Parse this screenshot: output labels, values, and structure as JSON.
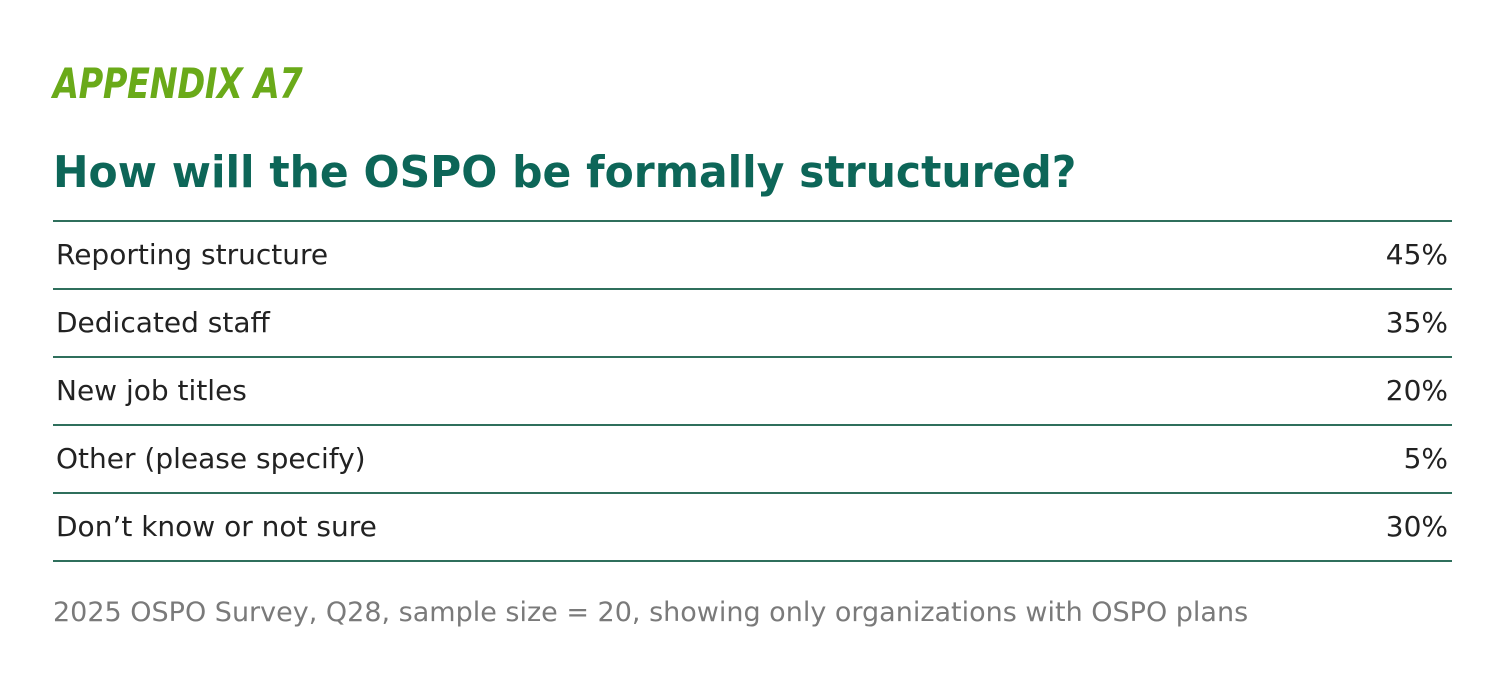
{
  "header": {
    "appendix_label": "APPENDIX A7",
    "title": "How will the OSPO be formally structured?"
  },
  "chart_data": {
    "type": "table",
    "title": "How will the OSPO be formally structured?",
    "categories": [
      "Reporting structure",
      "Dedicated staff",
      "New job titles",
      "Other (please specify)",
      "Don’t know or not sure"
    ],
    "values": [
      45,
      35,
      20,
      5,
      30
    ],
    "value_labels": [
      "45%",
      "35%",
      "20%",
      "5%",
      "30%"
    ],
    "unit": "%"
  },
  "footnote": "2025 OSPO Survey, Q28, sample size = 20, showing only organizations with OSPO plans",
  "colors": {
    "appendix_label": "#6aaa19",
    "title": "#0d6658",
    "rule": "#2f6f5c",
    "text": "#222222",
    "footnote": "#7a7a7a"
  }
}
